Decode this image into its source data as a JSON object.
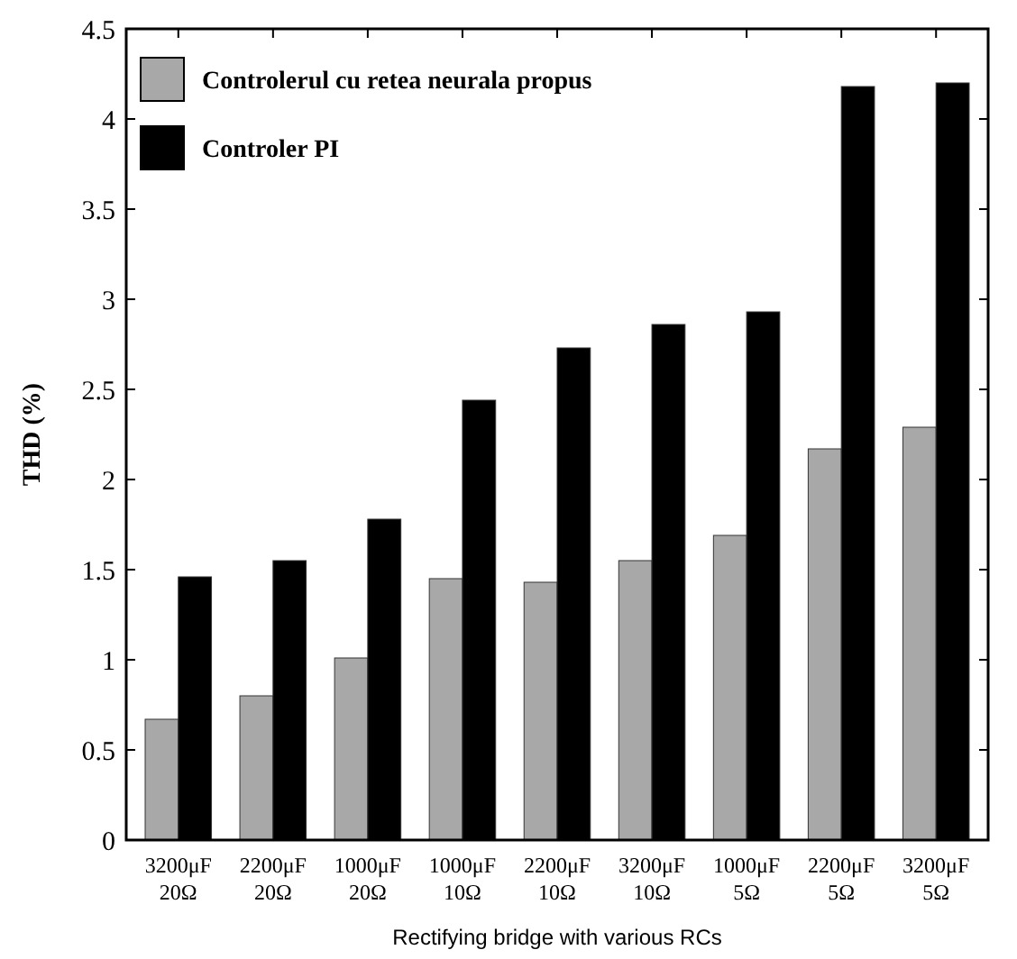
{
  "chart_data": {
    "type": "bar",
    "xlabel": "Rectifying  bridge with various RCs",
    "ylabel": "THD (%)",
    "categories": [
      "3200μF\n20Ω",
      "2200μF\n20Ω",
      "1000μF\n20Ω",
      "1000μF\n10Ω",
      "2200μF\n10Ω",
      "3200μF\n10Ω",
      "1000μF\n5Ω",
      "2200μF\n5Ω",
      "3200μF\n5Ω"
    ],
    "series": [
      {
        "name": "Controlerul cu retea neurala propus",
        "color": "#a8a8a8",
        "values": [
          0.67,
          0.8,
          1.01,
          1.45,
          1.43,
          1.55,
          1.69,
          2.17,
          2.29
        ]
      },
      {
        "name": "Controler PI",
        "color": "#000000",
        "values": [
          1.46,
          1.55,
          1.78,
          2.44,
          2.73,
          2.86,
          2.93,
          4.18,
          4.2
        ]
      }
    ],
    "ylim": [
      0,
      4.5
    ],
    "yticks": [
      0,
      0.5,
      1,
      1.5,
      2,
      2.5,
      3,
      3.5,
      4,
      4.5
    ],
    "grid": false,
    "legend": "top left"
  }
}
